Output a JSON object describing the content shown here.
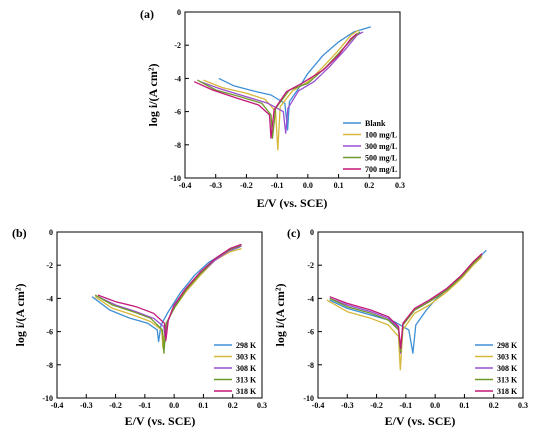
{
  "chart_data": [
    {
      "type": "line",
      "panel_label": "(a)",
      "xlabel": "E/V (vs. SCE)",
      "ylabel": "log i/(A cm²)",
      "xlim": [
        -0.4,
        0.3
      ],
      "ylim": [
        -10,
        0
      ],
      "xticks": [
        -0.4,
        -0.3,
        -0.2,
        -0.1,
        0.0,
        0.1,
        0.2,
        0.3
      ],
      "xtick_labels": [
        "-0.4",
        "-0.3",
        "-0.2",
        "-0.1",
        "0.0",
        "0.1",
        "0.2",
        "0.3"
      ],
      "yticks": [
        0,
        -2,
        -4,
        -6,
        -8,
        -10
      ],
      "ytick_labels": [
        "0",
        "-2",
        "-4",
        "-6",
        "-8",
        "-10"
      ],
      "legend_position": "bottom-right",
      "series": [
        {
          "name": "Blank",
          "color": "#3d8fd6",
          "x": [
            -0.29,
            -0.24,
            -0.18,
            -0.12,
            -0.075,
            -0.066,
            -0.06,
            -0.03,
            0.0,
            0.05,
            0.1,
            0.15,
            0.205
          ],
          "y": [
            -4.0,
            -4.45,
            -4.75,
            -5.0,
            -5.5,
            -7.1,
            -5.4,
            -4.6,
            -3.7,
            -2.6,
            -1.8,
            -1.2,
            -0.9
          ]
        },
        {
          "name": "100 mg/L",
          "color": "#d6b83a",
          "x": [
            -0.34,
            -0.28,
            -0.2,
            -0.14,
            -0.105,
            -0.098,
            -0.09,
            -0.05,
            0.0,
            0.05,
            0.1,
            0.14,
            0.165
          ],
          "y": [
            -4.1,
            -4.55,
            -4.9,
            -5.25,
            -6.0,
            -8.3,
            -5.7,
            -4.75,
            -4.2,
            -3.3,
            -2.3,
            -1.4,
            -1.1
          ]
        },
        {
          "name": "300 mg/L",
          "color": "#9a4fd0",
          "x": [
            -0.35,
            -0.29,
            -0.2,
            -0.13,
            -0.08,
            -0.072,
            -0.065,
            -0.03,
            0.02,
            0.07,
            0.12,
            0.16,
            0.18
          ],
          "y": [
            -4.2,
            -4.6,
            -5.1,
            -5.5,
            -6.0,
            -7.3,
            -5.8,
            -4.75,
            -4.2,
            -3.3,
            -2.3,
            -1.4,
            -1.2
          ]
        },
        {
          "name": "500 mg/L",
          "color": "#6e9a2a",
          "x": [
            -0.36,
            -0.3,
            -0.22,
            -0.15,
            -0.12,
            -0.115,
            -0.105,
            -0.06,
            0.0,
            0.06,
            0.11,
            0.15,
            0.17
          ],
          "y": [
            -4.1,
            -4.7,
            -5.1,
            -5.5,
            -6.2,
            -7.6,
            -5.8,
            -4.7,
            -4.3,
            -3.3,
            -2.3,
            -1.5,
            -1.2
          ]
        },
        {
          "name": "700 mg/L",
          "color": "#c2187a",
          "x": [
            -0.37,
            -0.31,
            -0.23,
            -0.16,
            -0.125,
            -0.12,
            -0.11,
            -0.07,
            -0.02,
            0.05,
            0.1,
            0.14,
            0.16
          ],
          "y": [
            -4.2,
            -4.7,
            -5.2,
            -5.6,
            -6.2,
            -7.6,
            -5.9,
            -4.8,
            -4.3,
            -3.5,
            -2.6,
            -1.6,
            -1.3
          ]
        }
      ]
    },
    {
      "type": "line",
      "panel_label": "(b)",
      "xlabel": "E/V (vs. SCE)",
      "ylabel": "log i/(A cm²)",
      "xlim": [
        -0.4,
        0.3
      ],
      "ylim": [
        -10,
        0
      ],
      "xticks": [
        -0.4,
        -0.3,
        -0.2,
        -0.1,
        0.0,
        0.1,
        0.2,
        0.3
      ],
      "xtick_labels": [
        "-0.4",
        "-0.3",
        "-0.2",
        "-0.1",
        "0.0",
        "0.1",
        "0.2",
        "0.3"
      ],
      "yticks": [
        0,
        -2,
        -4,
        -6,
        -8,
        -10
      ],
      "ytick_labels": [
        "0",
        "-2",
        "-4",
        "-6",
        "-8",
        "-10"
      ],
      "legend_position": "bottom-right",
      "series": [
        {
          "name": "298 K",
          "color": "#3d8fd6",
          "x": [
            -0.28,
            -0.22,
            -0.15,
            -0.09,
            -0.058,
            -0.053,
            -0.045,
            -0.02,
            0.02,
            0.07,
            0.12,
            0.18,
            0.225
          ],
          "y": [
            -3.9,
            -4.7,
            -5.2,
            -5.5,
            -5.9,
            -6.6,
            -5.6,
            -4.8,
            -3.7,
            -2.6,
            -1.8,
            -1.2,
            -0.9
          ]
        },
        {
          "name": "303 K",
          "color": "#d6b83a",
          "x": [
            -0.27,
            -0.21,
            -0.14,
            -0.08,
            -0.043,
            -0.038,
            -0.03,
            0.0,
            0.04,
            0.09,
            0.14,
            0.19,
            0.23
          ],
          "y": [
            -3.9,
            -4.6,
            -5.0,
            -5.4,
            -5.9,
            -7.0,
            -5.6,
            -4.6,
            -3.6,
            -2.6,
            -1.7,
            -1.2,
            -1.0
          ]
        },
        {
          "name": "308 K",
          "color": "#9a4fd0",
          "x": [
            -0.26,
            -0.2,
            -0.13,
            -0.07,
            -0.035,
            -0.03,
            -0.022,
            0.0,
            0.04,
            0.09,
            0.14,
            0.19,
            0.23
          ],
          "y": [
            -3.9,
            -4.4,
            -4.8,
            -5.2,
            -5.7,
            -6.6,
            -5.4,
            -4.5,
            -3.5,
            -2.5,
            -1.7,
            -1.1,
            -0.85
          ]
        },
        {
          "name": "313 K",
          "color": "#6e9a2a",
          "x": [
            -0.27,
            -0.21,
            -0.14,
            -0.08,
            -0.04,
            -0.035,
            -0.027,
            0.0,
            0.04,
            0.09,
            0.14,
            0.19,
            0.23
          ],
          "y": [
            -3.8,
            -4.4,
            -4.8,
            -5.2,
            -5.9,
            -7.3,
            -5.5,
            -4.6,
            -3.5,
            -2.5,
            -1.6,
            -1.05,
            -0.8
          ]
        },
        {
          "name": "318 K",
          "color": "#c2187a",
          "x": [
            -0.26,
            -0.2,
            -0.13,
            -0.07,
            -0.033,
            -0.028,
            -0.02,
            0.0,
            0.04,
            0.09,
            0.14,
            0.19,
            0.23
          ],
          "y": [
            -3.8,
            -4.2,
            -4.5,
            -4.9,
            -5.5,
            -6.5,
            -5.3,
            -4.4,
            -3.4,
            -2.4,
            -1.6,
            -1.0,
            -0.75
          ]
        }
      ]
    },
    {
      "type": "line",
      "panel_label": "(c)",
      "xlabel": "E/V (vs. SCE)",
      "ylabel": "log i/(A cm²)",
      "xlim": [
        -0.4,
        0.3
      ],
      "ylim": [
        -10,
        0
      ],
      "xticks": [
        -0.4,
        -0.3,
        -0.2,
        -0.1,
        0.0,
        0.1,
        0.2,
        0.3
      ],
      "xtick_labels": [
        "-0.4",
        "-0.3",
        "-0.2",
        "-0.1",
        "0.0",
        "0.1",
        "0.2",
        "0.3"
      ],
      "yticks": [
        0,
        -2,
        -4,
        -6,
        -8,
        -10
      ],
      "ytick_labels": [
        "0",
        "-2",
        "-4",
        "-6",
        "-8",
        "-10"
      ],
      "legend_position": "bottom-right",
      "series": [
        {
          "name": "298 K",
          "color": "#3d8fd6",
          "x": [
            -0.36,
            -0.3,
            -0.22,
            -0.14,
            -0.09,
            -0.076,
            -0.066,
            -0.03,
            0.0,
            0.05,
            0.1,
            0.14,
            0.175
          ],
          "y": [
            -4.1,
            -4.6,
            -5.0,
            -5.4,
            -5.9,
            -7.3,
            -5.6,
            -4.7,
            -4.1,
            -3.3,
            -2.5,
            -1.7,
            -1.1
          ]
        },
        {
          "name": "303 K",
          "color": "#d6b83a",
          "x": [
            -0.37,
            -0.3,
            -0.22,
            -0.16,
            -0.125,
            -0.119,
            -0.11,
            -0.07,
            -0.02,
            0.04,
            0.09,
            0.13,
            0.16
          ],
          "y": [
            -4.1,
            -4.8,
            -5.2,
            -5.6,
            -6.3,
            -8.3,
            -5.9,
            -4.9,
            -4.4,
            -3.6,
            -2.8,
            -2.0,
            -1.5
          ]
        },
        {
          "name": "308 K",
          "color": "#9a4fd0",
          "x": [
            -0.36,
            -0.3,
            -0.22,
            -0.16,
            -0.125,
            -0.118,
            -0.11,
            -0.07,
            -0.02,
            0.04,
            0.09,
            0.13,
            0.16
          ],
          "y": [
            -4.0,
            -4.4,
            -4.8,
            -5.2,
            -5.8,
            -7.3,
            -5.6,
            -4.7,
            -4.2,
            -3.5,
            -2.7,
            -1.9,
            -1.4
          ]
        },
        {
          "name": "313 K",
          "color": "#6e9a2a",
          "x": [
            -0.36,
            -0.3,
            -0.22,
            -0.16,
            -0.125,
            -0.118,
            -0.11,
            -0.07,
            -0.02,
            0.04,
            0.09,
            0.13,
            0.16
          ],
          "y": [
            -4.0,
            -4.5,
            -4.9,
            -5.3,
            -5.9,
            -7.2,
            -5.6,
            -4.7,
            -4.2,
            -3.5,
            -2.7,
            -1.9,
            -1.4
          ]
        },
        {
          "name": "318 K",
          "color": "#c2187a",
          "x": [
            -0.36,
            -0.3,
            -0.22,
            -0.16,
            -0.125,
            -0.118,
            -0.11,
            -0.07,
            -0.02,
            0.04,
            0.09,
            0.13,
            0.16
          ],
          "y": [
            -3.9,
            -4.3,
            -4.7,
            -5.1,
            -5.7,
            -7.0,
            -5.5,
            -4.6,
            -4.1,
            -3.4,
            -2.6,
            -1.8,
            -1.3
          ]
        }
      ]
    }
  ]
}
